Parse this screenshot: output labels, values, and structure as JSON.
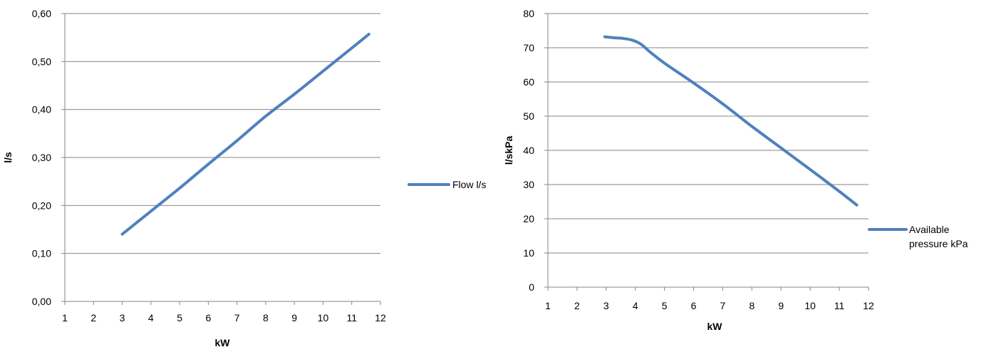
{
  "chart_data": [
    {
      "type": "line",
      "xlabel": "kW",
      "ylabel": "l/s",
      "x_ticks": [
        "1",
        "2",
        "3",
        "4",
        "5",
        "6",
        "7",
        "8",
        "9",
        "10",
        "11",
        "12"
      ],
      "y_ticks": [
        "0,00",
        "0,10",
        "0,20",
        "0,30",
        "0,40",
        "0,50",
        "0,60"
      ],
      "xlim": [
        1,
        12
      ],
      "ylim": [
        0,
        0.6
      ],
      "grid": true,
      "legend_position": "right",
      "series": [
        {
          "name": "Flow l/s",
          "color": "#4F81BD",
          "x": [
            3,
            4,
            5,
            6,
            7,
            8,
            9,
            10,
            11,
            11.6
          ],
          "y": [
            0.14,
            0.188,
            0.236,
            0.286,
            0.335,
            0.386,
            0.432,
            0.48,
            0.528,
            0.557
          ]
        }
      ]
    },
    {
      "type": "line",
      "xlabel": "kW",
      "ylabel": "l/skPa",
      "x_ticks": [
        "1",
        "2",
        "3",
        "4",
        "5",
        "6",
        "7",
        "8",
        "9",
        "10",
        "11",
        "12"
      ],
      "y_ticks": [
        "0",
        "10",
        "20",
        "30",
        "40",
        "50",
        "60",
        "70",
        "80"
      ],
      "xlim": [
        1,
        12
      ],
      "ylim": [
        0,
        80
      ],
      "grid": true,
      "legend_position": "right",
      "series": [
        {
          "name": "Available pressure kPa",
          "color": "#4F81BD",
          "x": [
            2.95,
            3.3,
            3.6,
            3.9,
            4.2,
            4.5,
            5,
            6,
            7,
            8,
            9,
            10,
            11,
            11.6
          ],
          "y": [
            73.2,
            72.9,
            72.7,
            72.2,
            71,
            68.8,
            65.5,
            59.7,
            53.6,
            47,
            40.7,
            34.4,
            28,
            24
          ]
        }
      ]
    }
  ]
}
